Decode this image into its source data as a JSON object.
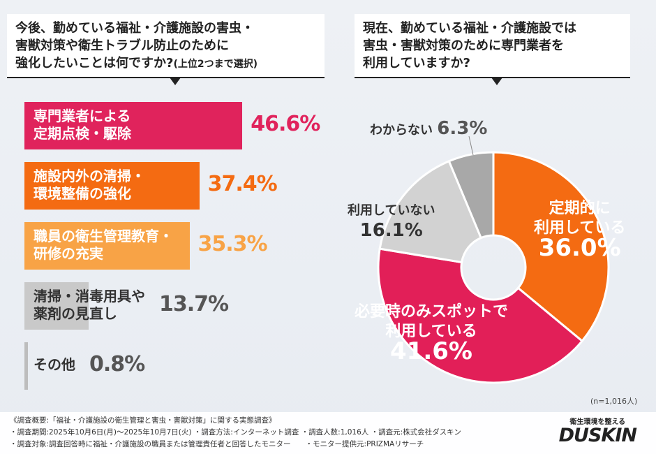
{
  "chart_data": [
    {
      "type": "bar",
      "orientation": "horizontal",
      "title": "今後、勤めている福祉・介護施設の害虫・\n害獣対策や衛生トラブル防止のために\n強化したいことは何ですか?",
      "title_note": "(上位2つまで選択)",
      "categories": [
        "専門業者による\n定期点検・駆除",
        "施設内外の清掃・\n環境整備の強化",
        "職員の衛生管理教育・\n研修の充実",
        "清掃・消毒用具や\n薬剤の見直し",
        "その他"
      ],
      "values": [
        46.6,
        37.4,
        35.3,
        13.7,
        0.8
      ],
      "labels": [
        "46.6%",
        "37.4%",
        "35.3%",
        "13.7%",
        "0.8%"
      ],
      "colors": [
        "#e0235c",
        "#f46b12",
        "#f8a346",
        "#c9c9c9",
        "#bdbdbd"
      ],
      "unit": "%"
    },
    {
      "type": "pie",
      "donut": true,
      "title": "現在、勤めている福祉・介護施設では\n害虫・害獣対策のために専門業者を\n利用していますか?",
      "categories": [
        "定期的に\n利用している",
        "必要時のみスポットで\n利用している",
        "利用していない",
        "わからない"
      ],
      "values": [
        36.0,
        41.6,
        16.1,
        6.3
      ],
      "labels": [
        "36.0%",
        "41.6%",
        "16.1%",
        "6.3%"
      ],
      "colors": [
        "#f46b12",
        "#e21f58",
        "#d2d2d2",
        "#a8a8a8"
      ],
      "unit": "%",
      "note": "(n=1,016人)"
    }
  ],
  "footer": {
    "line1": "《調査概要:「福祉・介護施設の衛生管理と害虫・害獣対策」に関する実態調査》",
    "line2": "・調査期間:2025年10月6日(月)～2025年10月7日(火) ・調査方法:インターネット調査 ・調査人数:1,016人 ・調査元:株式会社ダスキン",
    "line3": "・調査対象:調査回答時に福祉・介護施設の職員または管理責任者と回答したモニター　　・モニター提供元:PRIZMAリサーチ"
  },
  "logo": {
    "tagline": "衛生環境を整える",
    "brand": "DUSKIN"
  }
}
